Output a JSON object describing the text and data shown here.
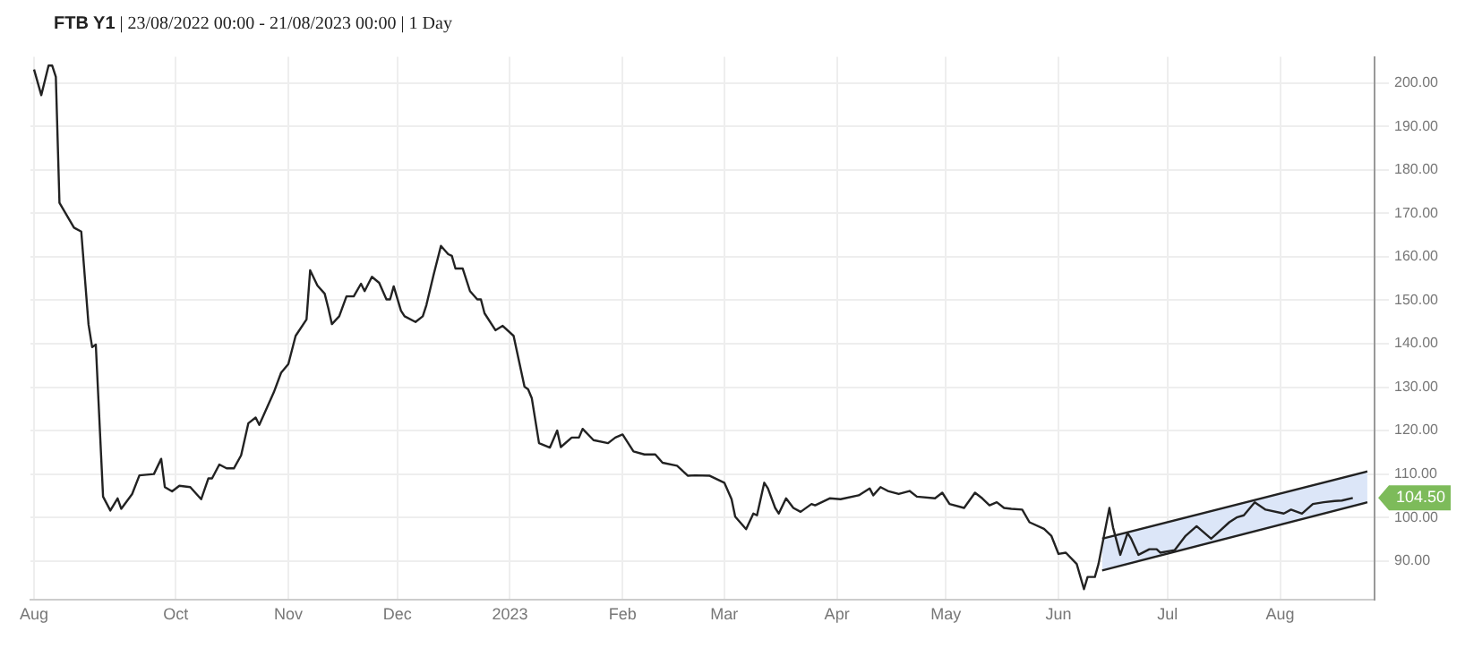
{
  "chart_data": {
    "type": "line",
    "title": "FTB Y1 | 23/08/2022 00:00 - 21/08/2023 00:00 | 1 Day",
    "xlim": [
      "2022-08-22",
      "2023-08-27"
    ],
    "xticks": [
      {
        "value": "2022-08-23",
        "label": "Aug"
      },
      {
        "value": "2022-10-01",
        "label": "Oct"
      },
      {
        "value": "2022-11-01",
        "label": "Nov"
      },
      {
        "value": "2022-12-01",
        "label": "Dec"
      },
      {
        "value": "2023-01-01",
        "label": "2023"
      },
      {
        "value": "2023-02-01",
        "label": "Feb"
      },
      {
        "value": "2023-03-01",
        "label": "Mar"
      },
      {
        "value": "2023-04-01",
        "label": "Apr"
      },
      {
        "value": "2023-05-01",
        "label": "May"
      },
      {
        "value": "2023-06-01",
        "label": "Jun"
      },
      {
        "value": "2023-07-01",
        "label": "Jul"
      },
      {
        "value": "2023-08-01",
        "label": "Aug"
      }
    ],
    "ylim": [
      81,
      206
    ],
    "yticks": [
      {
        "value": 90,
        "label": "90.00"
      },
      {
        "value": 100,
        "label": "100.00"
      },
      {
        "value": 110,
        "label": "110.00"
      },
      {
        "value": 120,
        "label": "120.00"
      },
      {
        "value": 130,
        "label": "130.00"
      },
      {
        "value": 140,
        "label": "140.00"
      },
      {
        "value": 150,
        "label": "150.00"
      },
      {
        "value": 160,
        "label": "160.00"
      },
      {
        "value": 170,
        "label": "170.00"
      },
      {
        "value": 180,
        "label": "180.00"
      },
      {
        "value": 190,
        "label": "190.00"
      },
      {
        "value": 200,
        "label": "200.00"
      }
    ],
    "grid": true,
    "legend": false,
    "marker": "none",
    "line_style": "solid",
    "annotations": [
      {
        "text": "104.50",
        "x": "2023-08-21",
        "y": 104.5
      }
    ],
    "series": [
      {
        "type": "line",
        "color": "#222222",
        "x": [
          "2022-08-23",
          "2022-08-25",
          "2022-08-27",
          "2022-08-28",
          "2022-08-29",
          "2022-08-30",
          "2022-09-03",
          "2022-09-05",
          "2022-09-07",
          "2022-09-08",
          "2022-09-09",
          "2022-09-11",
          "2022-09-13",
          "2022-09-15",
          "2022-09-16",
          "2022-09-19",
          "2022-09-21",
          "2022-09-25",
          "2022-09-27",
          "2022-09-28",
          "2022-09-30",
          "2022-10-02",
          "2022-10-05",
          "2022-10-08",
          "2022-10-10",
          "2022-10-11",
          "2022-10-13",
          "2022-10-15",
          "2022-10-17",
          "2022-10-19",
          "2022-10-21",
          "2022-10-23",
          "2022-10-24",
          "2022-10-28",
          "2022-10-30",
          "2022-11-01",
          "2022-11-03",
          "2022-11-06",
          "2022-11-07",
          "2022-11-09",
          "2022-11-11",
          "2022-11-12",
          "2022-11-13",
          "2022-11-15",
          "2022-11-17",
          "2022-11-19",
          "2022-11-21",
          "2022-11-22",
          "2022-11-24",
          "2022-11-26",
          "2022-11-28",
          "2022-11-29",
          "2022-11-30",
          "2022-12-02",
          "2022-12-03",
          "2022-12-06",
          "2022-12-08",
          "2022-12-09",
          "2022-12-11",
          "2022-12-13",
          "2022-12-15",
          "2022-12-16",
          "2022-12-17",
          "2022-12-19",
          "2022-12-21",
          "2022-12-23",
          "2022-12-24",
          "2022-12-25",
          "2022-12-28",
          "2022-12-30",
          "2023-01-02",
          "2023-01-05",
          "2023-01-06",
          "2023-01-07",
          "2023-01-09",
          "2023-01-12",
          "2023-01-14",
          "2023-01-15",
          "2023-01-18",
          "2023-01-20",
          "2023-01-21",
          "2023-01-24",
          "2023-01-28",
          "2023-01-30",
          "2023-02-01",
          "2023-02-04",
          "2023-02-07",
          "2023-02-10",
          "2023-02-12",
          "2023-02-16",
          "2023-02-19",
          "2023-02-21",
          "2023-02-25",
          "2023-03-01",
          "2023-03-03",
          "2023-03-04",
          "2023-03-07",
          "2023-03-09",
          "2023-03-10",
          "2023-03-12",
          "2023-03-13",
          "2023-03-15",
          "2023-03-16",
          "2023-03-18",
          "2023-03-20",
          "2023-03-22",
          "2023-03-25",
          "2023-03-26",
          "2023-03-30",
          "2023-04-02",
          "2023-04-07",
          "2023-04-10",
          "2023-04-11",
          "2023-04-13",
          "2023-04-15",
          "2023-04-18",
          "2023-04-21",
          "2023-04-23",
          "2023-04-28",
          "2023-04-30",
          "2023-05-02",
          "2023-05-06",
          "2023-05-09",
          "2023-05-11",
          "2023-05-13",
          "2023-05-15",
          "2023-05-17",
          "2023-05-19",
          "2023-05-22",
          "2023-05-24",
          "2023-05-28",
          "2023-05-30",
          "2023-06-01",
          "2023-06-03",
          "2023-06-06",
          "2023-06-08",
          "2023-06-09",
          "2023-06-11",
          "2023-06-12",
          "2023-06-15",
          "2023-06-16",
          "2023-06-18",
          "2023-06-20",
          "2023-06-21",
          "2023-06-23",
          "2023-06-26",
          "2023-06-28",
          "2023-06-29",
          "2023-07-03",
          "2023-07-06",
          "2023-07-09",
          "2023-07-13",
          "2023-07-15",
          "2023-07-18",
          "2023-07-20",
          "2023-07-22",
          "2023-07-25",
          "2023-07-28",
          "2023-08-02",
          "2023-08-04",
          "2023-08-07",
          "2023-08-10",
          "2023-08-13",
          "2023-08-16",
          "2023-08-18",
          "2023-08-21"
        ],
        "values": [
          203.1,
          197.2,
          204,
          204,
          201.4,
          172.4,
          166.7,
          165.8,
          144.4,
          139.2,
          139.8,
          104.8,
          101.6,
          104.4,
          102,
          105.4,
          109.7,
          110,
          113.5,
          107,
          106,
          107.3,
          107,
          104.2,
          109,
          109,
          112.2,
          111.3,
          111.3,
          114.3,
          121.7,
          123,
          121.3,
          128.8,
          133.3,
          135.3,
          141.8,
          145.6,
          156.9,
          153.4,
          151.5,
          148.2,
          144.5,
          146.3,
          150.9,
          150.9,
          153.8,
          152.1,
          155.4,
          154,
          150.2,
          150.2,
          153.2,
          147.6,
          146.3,
          145,
          146.3,
          148.9,
          155.9,
          162.5,
          160.6,
          160.2,
          157.3,
          157.3,
          152.1,
          150.2,
          150.2,
          147,
          143.1,
          144.1,
          141.8,
          130.1,
          129.5,
          127.5,
          117.1,
          116.1,
          120,
          116.2,
          118.4,
          118.4,
          120.4,
          117.8,
          117.1,
          118.4,
          119.1,
          115.2,
          114.5,
          114.5,
          112.6,
          111.9,
          109.6,
          109.7,
          109.6,
          108,
          104.2,
          100.2,
          97.3,
          100.9,
          100.5,
          108,
          106.7,
          102.2,
          100.9,
          104.4,
          102.2,
          101.3,
          103.1,
          102.8,
          104.4,
          104.2,
          105.1,
          106.7,
          105.1,
          107,
          106.1,
          105.4,
          106.1,
          104.8,
          104.4,
          105.7,
          103.1,
          102.2,
          105.7,
          104.4,
          102.8,
          103.5,
          102.2,
          102,
          101.8,
          98.9,
          97.4,
          95.8,
          91.6,
          91.9,
          89.3,
          83.5,
          86.3,
          86.3,
          89.3,
          102.2,
          97.7,
          91.4,
          96.4,
          95.1,
          91.4,
          92.7,
          92.7,
          91.9,
          92.5,
          95.8,
          98,
          95.1,
          96.6,
          98.9,
          100,
          100.5,
          103.5,
          101.8,
          100.9,
          101.8,
          100.9,
          103.1,
          103.5,
          103.8,
          103.9,
          104.5
        ]
      },
      {
        "type": "line",
        "color": "#dce6f8",
        "x": [
          "2023-06-13",
          "2023-08-25"
        ],
        "values": [
          null,
          null
        ],
        "lower": [
          87.8,
          103.5
        ],
        "upper": [
          95.1,
          110.6
        ]
      },
      {
        "type": "line",
        "color": "#222222",
        "x": [
          "2023-06-13",
          "2023-08-25"
        ],
        "values": [
          95.1,
          110.6
        ]
      },
      {
        "type": "line",
        "color": "#222222",
        "x": [
          "2023-06-13",
          "2023-08-25"
        ],
        "values": [
          87.8,
          103.5
        ]
      }
    ]
  }
}
